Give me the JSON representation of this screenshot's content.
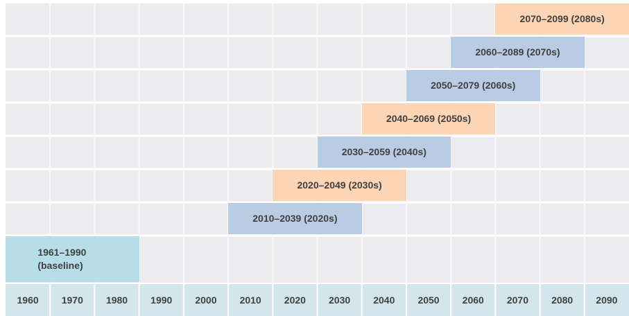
{
  "chart_data": {
    "type": "gantt",
    "bars": [
      {
        "label": "1961–1990 (baseline)",
        "start": 1960,
        "end": 1990,
        "color": "#b7dde8"
      },
      {
        "label": "2010–2039 (2020s)",
        "start": 2010,
        "end": 2040,
        "color": "#b9cce4"
      },
      {
        "label": "2020–2049 (2030s)",
        "start": 2020,
        "end": 2050,
        "color": "#fbd5b5"
      },
      {
        "label": "2030–2059 (2040s)",
        "start": 2030,
        "end": 2060,
        "color": "#b9cce4"
      },
      {
        "label": "2040–2069 (2050s)",
        "start": 2040,
        "end": 2070,
        "color": "#fbd5b5"
      },
      {
        "label": "2050–2079 (2060s)",
        "start": 2050,
        "end": 2080,
        "color": "#b9cce4"
      },
      {
        "label": "2060–2089 (2070s)",
        "start": 2060,
        "end": 2090,
        "color": "#b9cce4"
      },
      {
        "label": "2070–2099 (2080s)",
        "start": 2070,
        "end": 2100,
        "color": "#fbd5b5"
      }
    ],
    "xlim": [
      1960,
      2100
    ],
    "xticks": [
      1960,
      1970,
      1980,
      1990,
      2000,
      2010,
      2020,
      2030,
      2040,
      2050,
      2060,
      2070,
      2080,
      2090
    ]
  }
}
